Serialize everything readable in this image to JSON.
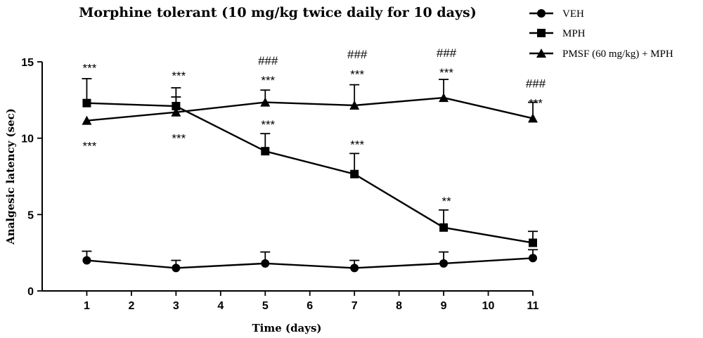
{
  "chart_data": {
    "type": "line",
    "title": "Morphine tolerant (10 mg/kg twice daily for 10 days)",
    "xlabel": "Time (days)",
    "ylabel": "Analgesic latency (sec)",
    "xlim": [
      0,
      11
    ],
    "ylim": [
      0,
      15
    ],
    "x_ticks": [
      "1",
      "2",
      "3",
      "4",
      "5",
      "6",
      "7",
      "8",
      "9",
      "10",
      "11"
    ],
    "y_ticks": [
      "0",
      "5",
      "10",
      "15"
    ],
    "x": [
      1,
      3,
      5,
      7,
      9,
      11
    ],
    "legend_position": "top-right",
    "series": [
      {
        "name": "VEH",
        "marker": "circle",
        "values": [
          2.0,
          1.5,
          1.8,
          1.5,
          1.8,
          2.15
        ],
        "error": [
          0.6,
          0.5,
          0.75,
          0.5,
          0.75,
          0.55
        ]
      },
      {
        "name": "MPH",
        "marker": "square",
        "values": [
          12.3,
          12.1,
          9.15,
          7.65,
          4.15,
          3.15
        ],
        "error": [
          1.6,
          1.2,
          1.15,
          1.35,
          1.15,
          0.75
        ]
      },
      {
        "name": "PMSF (60 mg/kg) + MPH",
        "marker": "triangle",
        "values": [
          11.15,
          11.7,
          12.35,
          12.15,
          12.65,
          11.3
        ],
        "error": [
          0.0,
          1.0,
          0.8,
          1.35,
          1.2,
          1.05
        ]
      }
    ],
    "annotations": [
      {
        "text": "***",
        "x": 1,
        "y": 14.6
      },
      {
        "text": "***",
        "x": 1,
        "y": 9.5
      },
      {
        "text": "***",
        "x": 3,
        "y": 14.1
      },
      {
        "text": "***",
        "x": 3,
        "y": 10.0
      },
      {
        "text": "###",
        "x": 5,
        "y": 15.1
      },
      {
        "text": "***",
        "x": 5,
        "y": 13.8
      },
      {
        "text": "***",
        "x": 5,
        "y": 10.9
      },
      {
        "text": "###",
        "x": 7,
        "y": 15.5
      },
      {
        "text": "***",
        "x": 7,
        "y": 14.2
      },
      {
        "text": "***",
        "x": 7,
        "y": 9.6
      },
      {
        "text": "###",
        "x": 9,
        "y": 15.6
      },
      {
        "text": "***",
        "x": 9,
        "y": 14.3
      },
      {
        "text": "**",
        "x": 9,
        "y": 5.9
      },
      {
        "text": "###",
        "x": 11,
        "y": 13.6
      },
      {
        "text": "***",
        "x": 11,
        "y": 12.3
      }
    ]
  }
}
